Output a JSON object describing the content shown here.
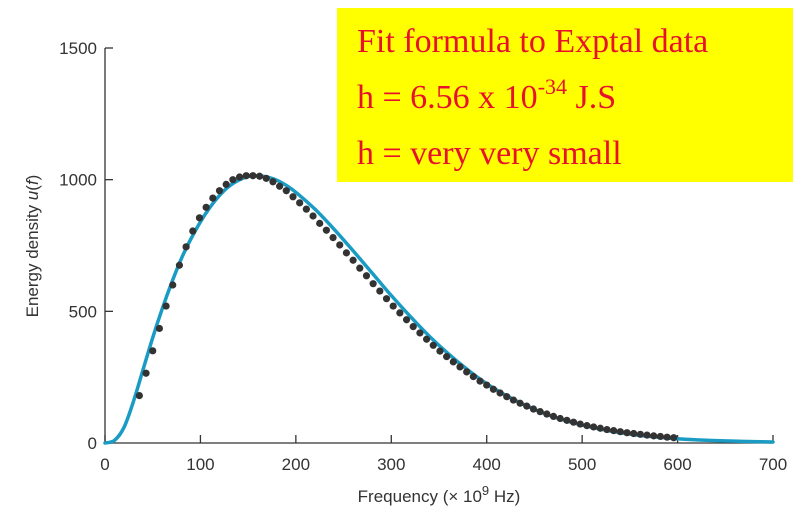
{
  "chart_data": {
    "type": "line",
    "xlabel_prefix": "Frequency (× 10",
    "xlabel_exp": "9",
    "xlabel_suffix": " Hz)",
    "ylabel_prefix": "Energy density ",
    "ylabel_var": "u",
    "ylabel_paren_open": "(",
    "ylabel_arg": "f",
    "ylabel_paren_close": ")",
    "xlim": [
      0,
      700
    ],
    "ylim": [
      0,
      1500
    ],
    "x_ticks": [
      "0",
      "100",
      "200",
      "300",
      "400",
      "500",
      "600",
      "700"
    ],
    "y_ticks": [
      "0",
      "500",
      "1000",
      "1500"
    ],
    "grid": false,
    "series": [
      {
        "kind": "curve",
        "color": "#1a9bc4",
        "peak_x": 165,
        "peak_y": 1015,
        "x": [
          0,
          10,
          20,
          30,
          40,
          50,
          60,
          70,
          80,
          90,
          100,
          110,
          120,
          130,
          140,
          150,
          160,
          170,
          180,
          190,
          200,
          220,
          240,
          260,
          280,
          300,
          320,
          340,
          360,
          380,
          400,
          420,
          440,
          460,
          480,
          500,
          520,
          540,
          560,
          580,
          600,
          620,
          640,
          660,
          680,
          700
        ],
        "y": [
          0,
          10,
          60,
          160,
          280,
          400,
          510,
          610,
          700,
          775,
          840,
          895,
          940,
          975,
          998,
          1012,
          1015,
          1010,
          998,
          978,
          952,
          888,
          812,
          730,
          645,
          560,
          480,
          405,
          338,
          278,
          225,
          181,
          144,
          113,
          88,
          68,
          52,
          39,
          29,
          22,
          16,
          12,
          9,
          7,
          5,
          4
        ]
      },
      {
        "kind": "points",
        "color": "#333333",
        "x": [
          36,
          43,
          50,
          57,
          64,
          71,
          78,
          85,
          92,
          99,
          106,
          113,
          120,
          127,
          134,
          141,
          148,
          155,
          162,
          169,
          176,
          183,
          190,
          197,
          204,
          211,
          218,
          225,
          232,
          239,
          246,
          253,
          260,
          267,
          274,
          281,
          288,
          295,
          302,
          309,
          316,
          323,
          330,
          337,
          344,
          351,
          358,
          365,
          372,
          379,
          386,
          393,
          400,
          407,
          414,
          421,
          428,
          435,
          442,
          449,
          456,
          463,
          470,
          477,
          484,
          491,
          498,
          505,
          512,
          519,
          526,
          533,
          540,
          547,
          554,
          561,
          568,
          575,
          582,
          589,
          596
        ],
        "y": [
          180,
          265,
          350,
          435,
          520,
          600,
          675,
          745,
          805,
          855,
          895,
          930,
          958,
          982,
          1000,
          1010,
          1015,
          1015,
          1013,
          1005,
          992,
          975,
          958,
          935,
          912,
          888,
          862,
          834,
          808,
          780,
          752,
          722,
          694,
          664,
          635,
          605,
          577,
          548,
          520,
          494,
          468,
          442,
          418,
          394,
          371,
          349,
          328,
          308,
          289,
          270,
          252,
          235,
          220,
          204,
          190,
          176,
          163,
          151,
          140,
          129,
          119,
          110,
          101,
          93,
          86,
          79,
          72,
          66,
          61,
          56,
          51,
          47,
          43,
          39,
          36,
          33,
          30,
          27,
          25,
          22,
          20
        ]
      }
    ],
    "annotation": {
      "line1": "Fit formula to Exptal data",
      "line2_prefix": "h = 6.56 x 10",
      "line2_exp": "-34",
      "line2_suffix": " J.S",
      "line3": "h = very very small",
      "box_color": "#ffff00",
      "text_color": "#e8112d"
    }
  }
}
